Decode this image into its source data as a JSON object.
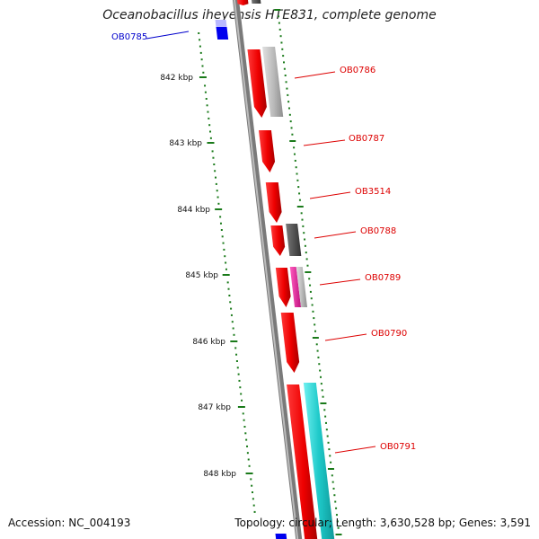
{
  "title": "Oceanobacillus iheyensis HTE831, complete genome",
  "footer": {
    "accession": "Accession: NC_004193",
    "topology": "Topology: circular; Length: 3,630,528 bp; Genes: 3,591"
  },
  "colors": {
    "backbone": "#7a7a7a",
    "cds_forward": "#ee0000",
    "tick": "#1a7a1a",
    "label_red": "#dd0000",
    "label_blue": "#0000cc",
    "gray_feature": "#b8b8b8",
    "dark_feature": "#555555",
    "magenta_feature": "#e0209a",
    "cyan_feature": "#1ec9c9",
    "blue_feature": "#0000ee"
  },
  "scale_labels": [
    "842 kbp",
    "843 kbp",
    "844 kbp",
    "845 kbp",
    "846 kbp",
    "847 kbp",
    "848 kbp"
  ],
  "gene_labels": [
    {
      "name": "OB0785",
      "color": "blue"
    },
    {
      "name": "OB0786",
      "color": "red"
    },
    {
      "name": "OB0787",
      "color": "red"
    },
    {
      "name": "OB3514",
      "color": "red"
    },
    {
      "name": "OB0788",
      "color": "red"
    },
    {
      "name": "OB0789",
      "color": "red"
    },
    {
      "name": "OB0790",
      "color": "red"
    },
    {
      "name": "OB0791",
      "color": "red"
    }
  ]
}
